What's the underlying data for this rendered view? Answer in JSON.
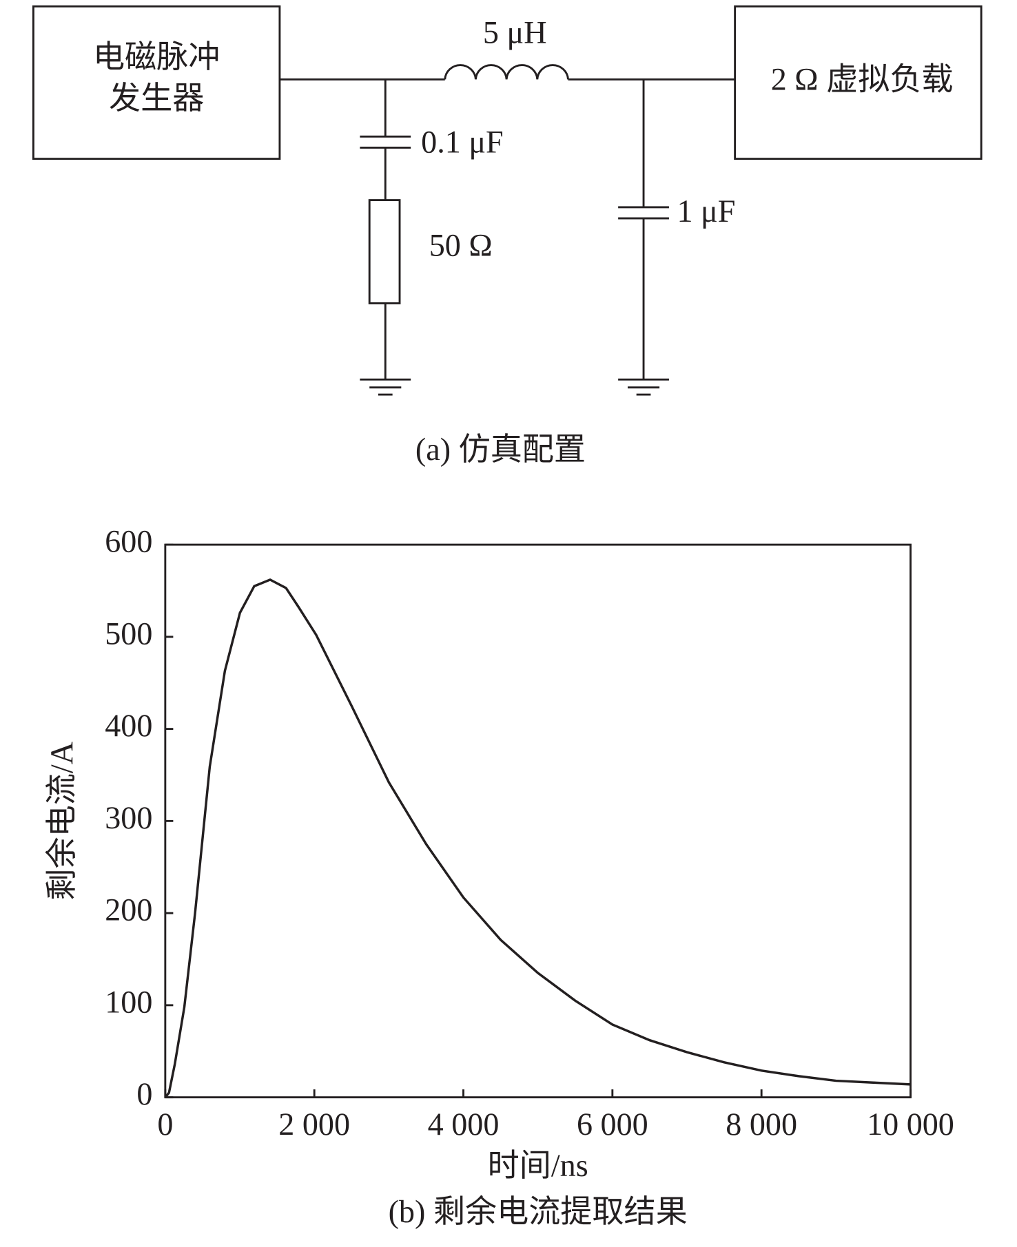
{
  "diagram": {
    "source": [
      "电磁脉冲",
      "发生器"
    ],
    "load": "2 Ω 虚拟负载",
    "inductor": "5 μH",
    "capacitor1": "0.1 μF",
    "resistor": "50 Ω",
    "capacitor2": "1 μF",
    "caption": "(a) 仿真配置"
  },
  "chart_data": {
    "type": "line",
    "caption": "(b) 剩余电流提取结果",
    "xlabel": "时间/ns",
    "ylabel": "剩余电流/A",
    "color": "#231f20",
    "x": [
      0,
      50,
      128,
      256,
      400,
      597,
      800,
      1002,
      1194,
      1407,
      1620,
      1791,
      2025,
      2500,
      3000,
      3500,
      4000,
      4500,
      5000,
      5500,
      6000,
      6500,
      7000,
      7500,
      8000,
      8500,
      9000,
      9500,
      10000
    ],
    "values": [
      0,
      5,
      36,
      98,
      200,
      359,
      463,
      526,
      555,
      562,
      553,
      532,
      502,
      425,
      342,
      275,
      217,
      171,
      135,
      105,
      79,
      62,
      49,
      38,
      29,
      23,
      18,
      16,
      14
    ],
    "xlim": [
      0,
      10000
    ],
    "xticks": [
      0,
      {
        "value": 2000,
        "label": "2 000"
      },
      {
        "value": 4000,
        "label": "4 000"
      },
      {
        "value": 6000,
        "label": "6 000"
      },
      {
        "value": 8000,
        "label": "8 000"
      },
      {
        "value": 10000,
        "label": "10 000"
      }
    ],
    "ylim": [
      0,
      600
    ],
    "yticks": [
      0,
      100,
      200,
      300,
      400,
      500,
      600
    ]
  }
}
